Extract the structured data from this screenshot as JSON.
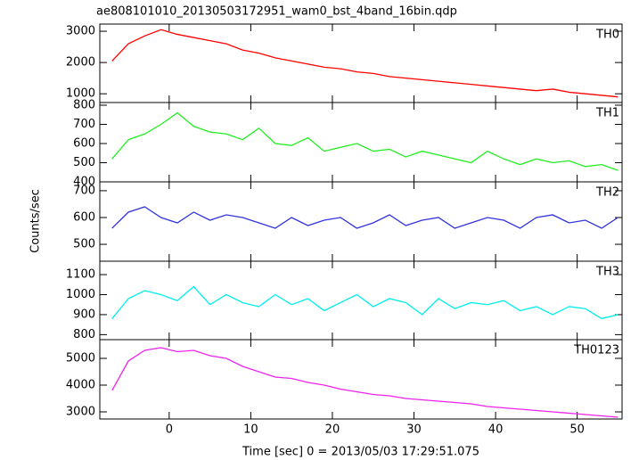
{
  "title": "ae808101010_20130503172951_wam0_bst_4band_16bin.qdp",
  "y_label": "Counts/sec",
  "x_label": "Time [sec] 0 = 2013/05/03 17:29:51.075",
  "chart_data": [
    {
      "type": "line",
      "title": "TH0",
      "color": "#ff0000",
      "x": [
        -7,
        -5,
        -3,
        -1,
        1,
        3,
        5,
        7,
        9,
        11,
        13,
        15,
        17,
        19,
        21,
        23,
        25,
        27,
        29,
        31,
        33,
        35,
        37,
        39,
        41,
        43,
        45,
        47,
        49,
        51,
        53,
        55
      ],
      "values": [
        2050,
        2600,
        2850,
        3050,
        2900,
        2800,
        2700,
        2600,
        2400,
        2300,
        2150,
        2050,
        1950,
        1850,
        1800,
        1700,
        1650,
        1550,
        1500,
        1450,
        1400,
        1350,
        1300,
        1250,
        1200,
        1150,
        1100,
        1150,
        1050,
        1000,
        950,
        900
      ],
      "xlim": [
        -8.5,
        55.5
      ],
      "ylim": [
        720,
        3230
      ],
      "yticks": [
        1000,
        2000,
        3000
      ]
    },
    {
      "type": "line",
      "title": "TH1",
      "color": "#22ee22",
      "x": [
        -7,
        -5,
        -3,
        -1,
        1,
        3,
        5,
        7,
        9,
        11,
        13,
        15,
        17,
        19,
        21,
        23,
        25,
        27,
        29,
        31,
        33,
        35,
        37,
        39,
        41,
        43,
        45,
        47,
        49,
        51,
        53,
        55
      ],
      "values": [
        520,
        620,
        650,
        700,
        760,
        690,
        660,
        650,
        620,
        680,
        600,
        590,
        630,
        560,
        580,
        600,
        560,
        570,
        530,
        560,
        540,
        520,
        500,
        560,
        520,
        490,
        520,
        500,
        510,
        480,
        490,
        460
      ],
      "xlim": [
        -8.5,
        55.5
      ],
      "ylim": [
        400,
        814
      ],
      "yticks": [
        400,
        500,
        600,
        700,
        800
      ]
    },
    {
      "type": "line",
      "title": "TH2",
      "color": "#3333dd",
      "x": [
        -7,
        -5,
        -3,
        -1,
        1,
        3,
        5,
        7,
        9,
        11,
        13,
        15,
        17,
        19,
        21,
        23,
        25,
        27,
        29,
        31,
        33,
        35,
        37,
        39,
        41,
        43,
        45,
        47,
        49,
        51,
        53,
        55
      ],
      "values": [
        560,
        620,
        640,
        600,
        580,
        620,
        590,
        610,
        600,
        580,
        560,
        600,
        570,
        590,
        600,
        560,
        580,
        610,
        570,
        590,
        600,
        560,
        580,
        600,
        590,
        560,
        600,
        610,
        580,
        590,
        560,
        600
      ],
      "xlim": [
        -8.5,
        55.5
      ],
      "ylim": [
        437,
        733
      ],
      "yticks": [
        500,
        600,
        700
      ]
    },
    {
      "type": "line",
      "title": "TH3",
      "color": "#00eeee",
      "x": [
        -7,
        -5,
        -3,
        -1,
        1,
        3,
        5,
        7,
        9,
        11,
        13,
        15,
        17,
        19,
        21,
        23,
        25,
        27,
        29,
        31,
        33,
        35,
        37,
        39,
        41,
        43,
        45,
        47,
        49,
        51,
        53,
        55
      ],
      "values": [
        880,
        980,
        1020,
        1000,
        970,
        1040,
        950,
        1000,
        960,
        940,
        1000,
        950,
        980,
        920,
        960,
        1000,
        940,
        980,
        960,
        900,
        980,
        930,
        960,
        950,
        970,
        920,
        940,
        900,
        940,
        930,
        880,
        900
      ],
      "xlim": [
        -8.5,
        55.5
      ],
      "ylim": [
        775,
        1167
      ],
      "yticks": [
        800,
        900,
        1000,
        1100
      ]
    },
    {
      "type": "line",
      "title": "TH0123",
      "color": "#ee22ee",
      "x": [
        -7,
        -5,
        -3,
        -1,
        1,
        3,
        5,
        7,
        9,
        11,
        13,
        15,
        17,
        19,
        21,
        23,
        25,
        27,
        29,
        31,
        33,
        35,
        37,
        39,
        41,
        43,
        45,
        47,
        49,
        51,
        53,
        55
      ],
      "values": [
        3800,
        4900,
        5300,
        5400,
        5250,
        5300,
        5100,
        5000,
        4700,
        4500,
        4300,
        4250,
        4100,
        4000,
        3850,
        3750,
        3650,
        3600,
        3500,
        3450,
        3400,
        3350,
        3300,
        3200,
        3150,
        3100,
        3050,
        3000,
        2950,
        2900,
        2850,
        2800
      ],
      "xlim": [
        -8.5,
        55.5
      ],
      "ylim": [
        2733,
        5700
      ],
      "yticks": [
        3000,
        4000,
        5000
      ],
      "xticks": [
        0,
        10,
        20,
        30,
        40,
        50
      ]
    }
  ]
}
